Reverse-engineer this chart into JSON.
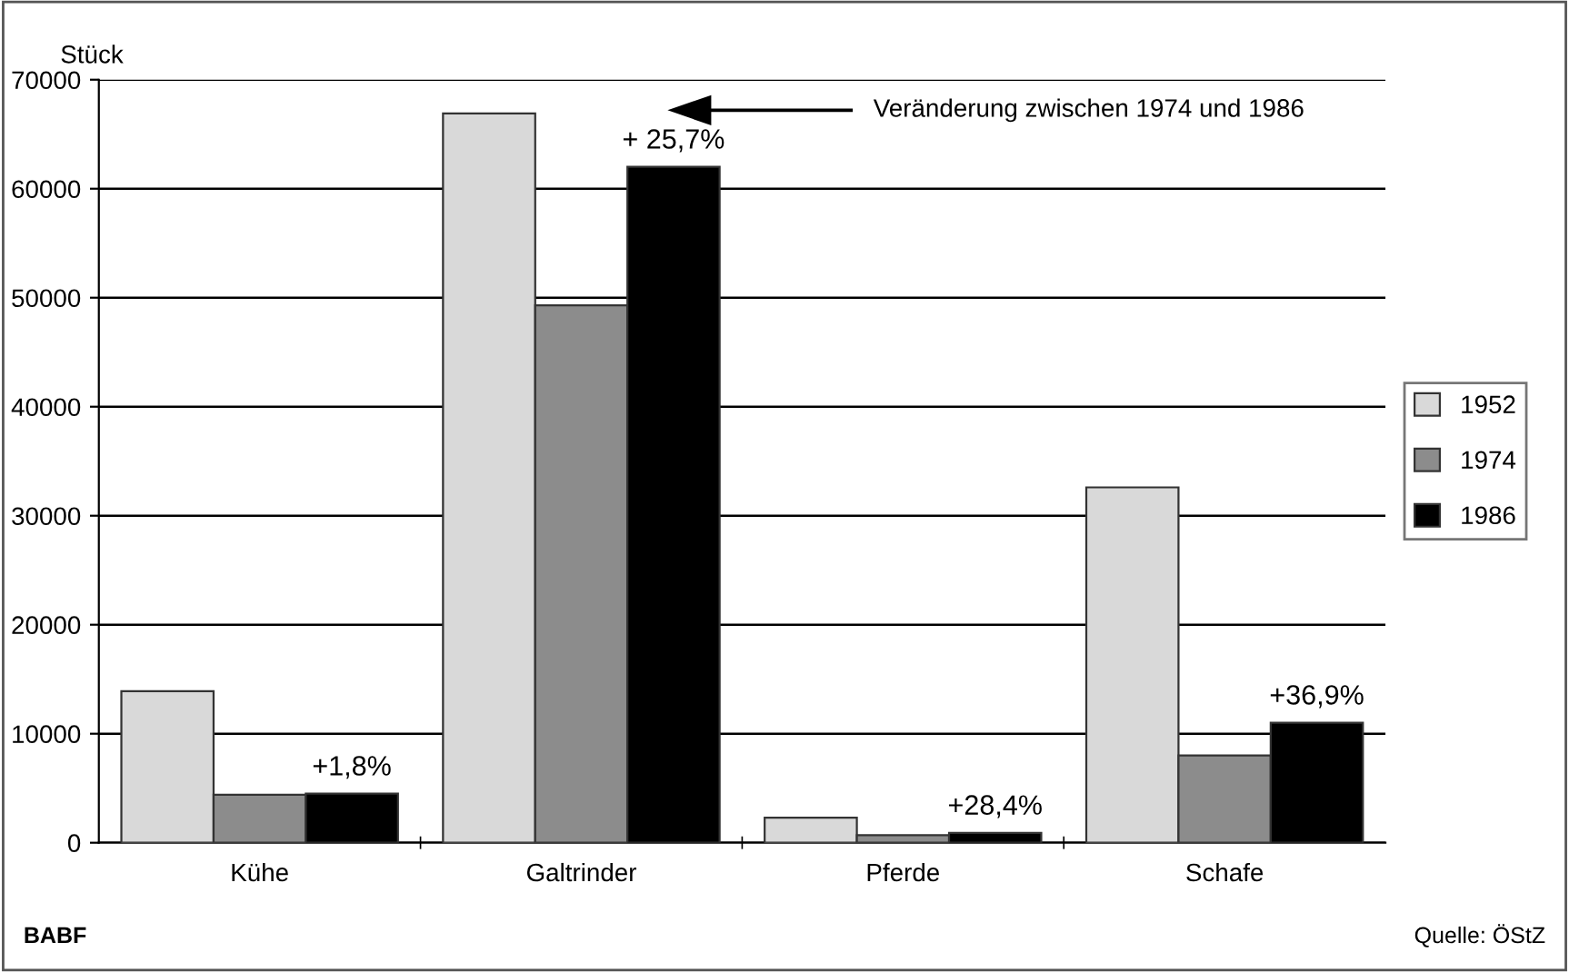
{
  "chart_data": {
    "type": "bar",
    "ylabel": "Stück",
    "categories": [
      "Kühe",
      "Galtrinder",
      "Pferde",
      "Schafe"
    ],
    "series": [
      {
        "name": "1952",
        "color": "#d9d9d9",
        "values": [
          13900,
          66900,
          2300,
          32600
        ]
      },
      {
        "name": "1974",
        "color": "#8c8c8c",
        "values": [
          4400,
          49300,
          700,
          8000
        ]
      },
      {
        "name": "1986",
        "color": "#000000",
        "values": [
          4500,
          62000,
          900,
          11000
        ]
      }
    ],
    "ylim": [
      0,
      70000
    ],
    "yticks": [
      0,
      10000,
      20000,
      30000,
      40000,
      50000,
      60000,
      70000
    ],
    "grid": "y",
    "legend": "right",
    "annotations": [
      "+1,8%",
      "+ 25,7%",
      "+28,4%",
      "+36,9%",
      "Veränderung zwischen 1974 und 1986",
      "BABF",
      "Quelle: ÖStZ"
    ]
  }
}
